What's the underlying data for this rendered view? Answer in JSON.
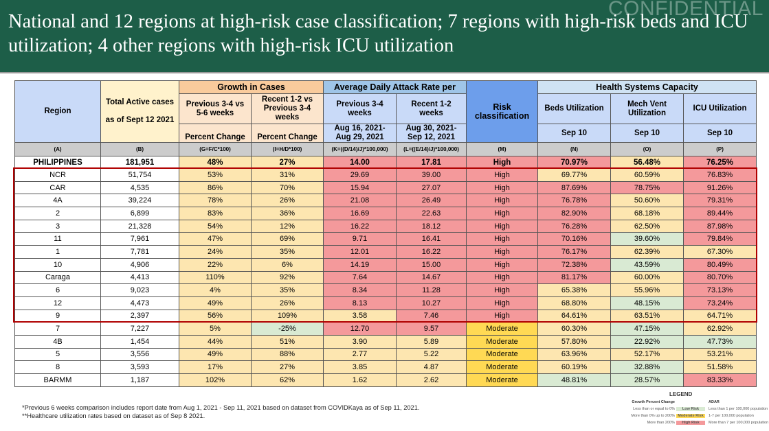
{
  "slide": {
    "title": "National and 12 regions at high-risk case classification; 7 regions with high-risk beds and ICU utilization; 4 other regions with high-risk ICU utilization",
    "watermark": "CONFIDENTIAL"
  },
  "table": {
    "headers": {
      "region": "Region",
      "total": "Total Active cases\n\nas of Sept 12 2021",
      "growth_group": "Growth in Cases",
      "growth_prev": "Previous 3-4 vs 5-6 weeks",
      "growth_recent": "Recent 1-2 vs Previous 3-4 weeks",
      "percent_change": "Percent Change",
      "adar_group": "Average Daily Attack Rate per",
      "adar_prev": "Previous 3-4 weeks",
      "adar_recent": "Recent 1-2 weeks",
      "adar_prev_dates": "Aug 16, 2021- Aug 29, 2021",
      "adar_recent_dates": "Aug 30, 2021- Sep 12, 2021",
      "risk": "Risk classification",
      "hsc_group": "Health Systems Capacity",
      "beds": "Beds Utilization",
      "mv": "Mech Vent Utilization",
      "icu": "ICU Utilization",
      "date": "Sep 10"
    },
    "letters": [
      "(A)",
      "(B)",
      "(G=F/C*100)",
      "(I=H/D*100)",
      "(K=((D/14)/J)*100,000)",
      "(L=((E/14)/J)*100,000)",
      "(M)",
      "(N)",
      "(O)",
      "(P)"
    ],
    "national": {
      "cells": [
        "PHILIPPINES",
        "181,951",
        "48%",
        "27%",
        "14.00",
        "17.81",
        "High",
        "70.97%",
        "56.48%",
        "76.25%"
      ],
      "levels": "WWMMHHHHMH"
    },
    "rows": [
      {
        "cells": [
          "NCR",
          "51,754",
          "53%",
          "31%",
          "29.69",
          "39.00",
          "High",
          "69.77%",
          "60.59%",
          "76.83%"
        ],
        "levels": "WWMMHHHMMH"
      },
      {
        "cells": [
          "CAR",
          "4,535",
          "86%",
          "70%",
          "15.94",
          "27.07",
          "High",
          "87.69%",
          "78.75%",
          "91.26%"
        ],
        "levels": "WWMMHHHHHH"
      },
      {
        "cells": [
          "4A",
          "39,224",
          "78%",
          "26%",
          "21.08",
          "26.49",
          "High",
          "76.78%",
          "50.60%",
          "79.31%"
        ],
        "levels": "WWMMHHHHMH"
      },
      {
        "cells": [
          "2",
          "6,899",
          "83%",
          "36%",
          "16.69",
          "22.63",
          "High",
          "82.90%",
          "68.18%",
          "89.44%"
        ],
        "levels": "WWMMHHHHMH"
      },
      {
        "cells": [
          "3",
          "21,328",
          "54%",
          "12%",
          "16.22",
          "18.12",
          "High",
          "76.28%",
          "62.50%",
          "87.98%"
        ],
        "levels": "WWMMHHHHMH"
      },
      {
        "cells": [
          "11",
          "7,961",
          "47%",
          "69%",
          "9.71",
          "16.41",
          "High",
          "70.16%",
          "39.60%",
          "79.84%"
        ],
        "levels": "WWMMHHHHLH"
      },
      {
        "cells": [
          "1",
          "7,781",
          "24%",
          "35%",
          "12.01",
          "16.22",
          "High",
          "76.17%",
          "62.39%",
          "67.30%"
        ],
        "levels": "WWMMHHHHMM"
      },
      {
        "cells": [
          "10",
          "4,906",
          "22%",
          "6%",
          "14.19",
          "15.00",
          "High",
          "72.38%",
          "43.59%",
          "80.49%"
        ],
        "levels": "WWMMHHHHLH"
      },
      {
        "cells": [
          "Caraga",
          "4,413",
          "110%",
          "92%",
          "7.64",
          "14.67",
          "High",
          "81.17%",
          "60.00%",
          "80.70%"
        ],
        "levels": "WWMMHHHHMH"
      },
      {
        "cells": [
          "6",
          "9,023",
          "4%",
          "35%",
          "8.34",
          "11.28",
          "High",
          "65.38%",
          "55.96%",
          "73.13%"
        ],
        "levels": "WWMMHHHMMH"
      },
      {
        "cells": [
          "12",
          "4,473",
          "49%",
          "26%",
          "8.13",
          "10.27",
          "High",
          "68.80%",
          "48.15%",
          "73.24%"
        ],
        "levels": "WWMMHHHMLH"
      },
      {
        "cells": [
          "9",
          "2,397",
          "56%",
          "109%",
          "3.58",
          "7.46",
          "High",
          "64.61%",
          "63.51%",
          "64.71%"
        ],
        "levels": "WWMMMHHMMM"
      },
      {
        "cells": [
          "7",
          "7,227",
          "5%",
          "-25%",
          "12.70",
          "9.57",
          "Moderate",
          "60.30%",
          "47.15%",
          "62.92%"
        ],
        "levels": "WWMLHHRMLM"
      },
      {
        "cells": [
          "4B",
          "1,454",
          "44%",
          "51%",
          "3.90",
          "5.89",
          "Moderate",
          "57.80%",
          "22.92%",
          "47.73%"
        ],
        "levels": "WWMMMMRMLL"
      },
      {
        "cells": [
          "5",
          "3,556",
          "49%",
          "88%",
          "2.77",
          "5.22",
          "Moderate",
          "63.96%",
          "52.17%",
          "53.21%"
        ],
        "levels": "WWMMMMRMMM"
      },
      {
        "cells": [
          "8",
          "3,593",
          "17%",
          "27%",
          "3.85",
          "4.87",
          "Moderate",
          "60.19%",
          "32.88%",
          "51.58%"
        ],
        "levels": "WWMMMMRMLM"
      },
      {
        "cells": [
          "BARMM",
          "1,187",
          "102%",
          "62%",
          "1.62",
          "2.62",
          "Moderate",
          "48.81%",
          "28.57%",
          "83.33%"
        ],
        "levels": "WWMMMMRLLH"
      }
    ]
  },
  "colors": {
    "title_bg": "#1d5e48",
    "high": "#f4999b",
    "moderate": "#fde6b0",
    "low": "#d9ead3",
    "risk_moderate": "#ffd954",
    "highlight_box": "#b00000"
  },
  "footnotes": [
    "*Previous 6 weeks comparison includes report date from Aug 1, 2021 - Sep 11, 2021 based on dataset from COVIDKaya as of Sep 11, 2021.",
    "**Healthcare utilization rates based on dataset as of Sep 8 2021."
  ],
  "legend": {
    "title": "LEGEND",
    "growth_header": "Growth Percent Change",
    "adar_header": "ADAR",
    "items": [
      {
        "growth": "Less than or equal to 0%",
        "risk": "Low Risk",
        "adar": "Less than 1 per 100,000 population"
      },
      {
        "growth": "More than 0% up to 200%",
        "risk": "Moderate Risk",
        "adar": "1-7 per 100,000 population"
      },
      {
        "growth": "More than 200%",
        "risk": "High Risk",
        "adar": "More than 7 per 100,000 population"
      }
    ]
  }
}
